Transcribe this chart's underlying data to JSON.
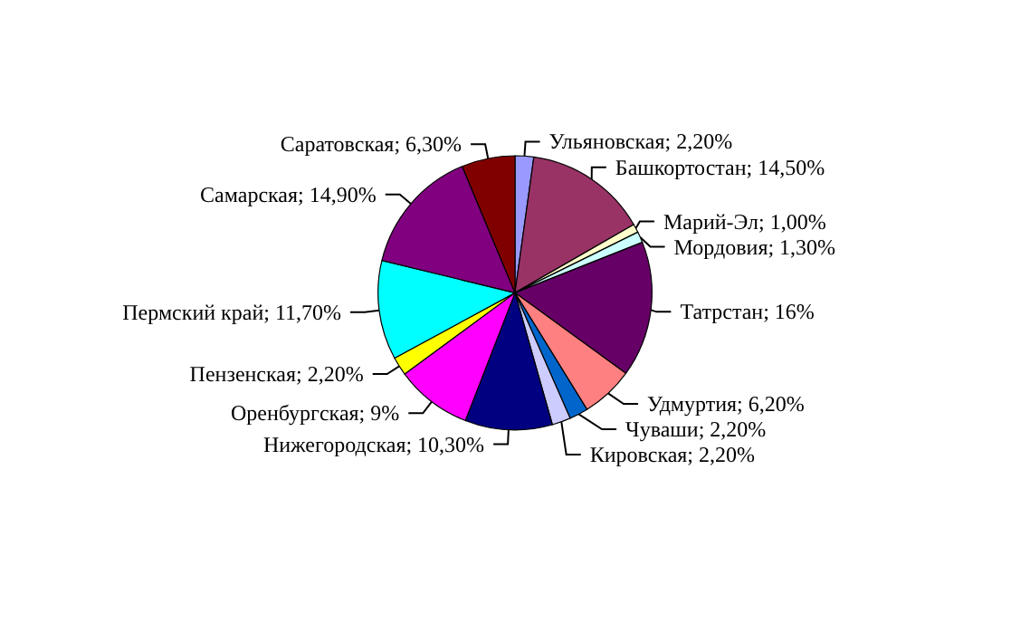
{
  "chart_data": {
    "type": "pie",
    "categories": [
      "Ульяновская",
      "Башкортостан",
      "Марий-Эл",
      "Мордовия",
      "Татрстан",
      "Удмуртия",
      "Чуваши",
      "Кировская",
      "Нижегородская",
      "Оренбургская",
      "Пензенская",
      "Пермский край",
      "Самарская",
      "Саратовская"
    ],
    "values": [
      2.2,
      14.5,
      1.0,
      1.3,
      16,
      6.2,
      2.2,
      2.2,
      10.3,
      9,
      2.2,
      11.7,
      14.9,
      6.3
    ],
    "value_labels": [
      "2,20%",
      "14,50%",
      "1,00%",
      "1,30%",
      "16%",
      "6,20%",
      "2,20%",
      "2,20%",
      "10,30%",
      "9%",
      "2,20%",
      "11,70%",
      "14,90%",
      "6,30%"
    ],
    "colors": [
      "#9999ff",
      "#993366",
      "#ffffcc",
      "#ccffff",
      "#660066",
      "#ff8080",
      "#0066cc",
      "#ccccff",
      "#000080",
      "#ff00ff",
      "#ffff00",
      "#00ffff",
      "#800080",
      "#800000"
    ],
    "legend": false
  }
}
